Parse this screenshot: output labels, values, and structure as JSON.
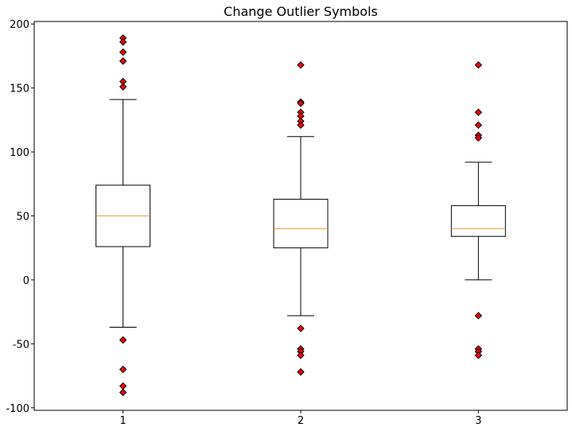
{
  "chart_data": {
    "type": "box",
    "title": "Change Outlier Symbols",
    "xlabel": "",
    "ylabel": "",
    "categories": [
      "1",
      "2",
      "3"
    ],
    "ylim": [
      -102,
      202
    ],
    "yticks": [
      200,
      150,
      100,
      50,
      0,
      -50,
      -100
    ],
    "grid": false,
    "boxes": [
      {
        "category": "1",
        "whisker_low": -37,
        "q1": 26,
        "median": 50,
        "q3": 74,
        "whisker_high": 141,
        "outliers": [
          189,
          186,
          178,
          171,
          155,
          151,
          -47,
          -70,
          -83,
          -88
        ]
      },
      {
        "category": "2",
        "whisker_low": -28,
        "q1": 25,
        "median": 40,
        "q3": 63,
        "whisker_high": 112,
        "outliers": [
          168,
          139,
          138,
          131,
          128,
          124,
          121,
          -38,
          -54,
          -56,
          -59,
          -72
        ]
      },
      {
        "category": "3",
        "whisker_low": 0,
        "q1": 34,
        "median": 40,
        "q3": 58,
        "whisker_high": 92,
        "outliers": [
          168,
          131,
          121,
          113,
          111,
          -28,
          -54,
          -56,
          -59
        ]
      }
    ],
    "colors": {
      "box": "#000000",
      "median": "#e8a33d",
      "outlier_fill": "#ff0000",
      "outlier_edge": "#000000"
    },
    "outlier_marker": "diamond"
  }
}
